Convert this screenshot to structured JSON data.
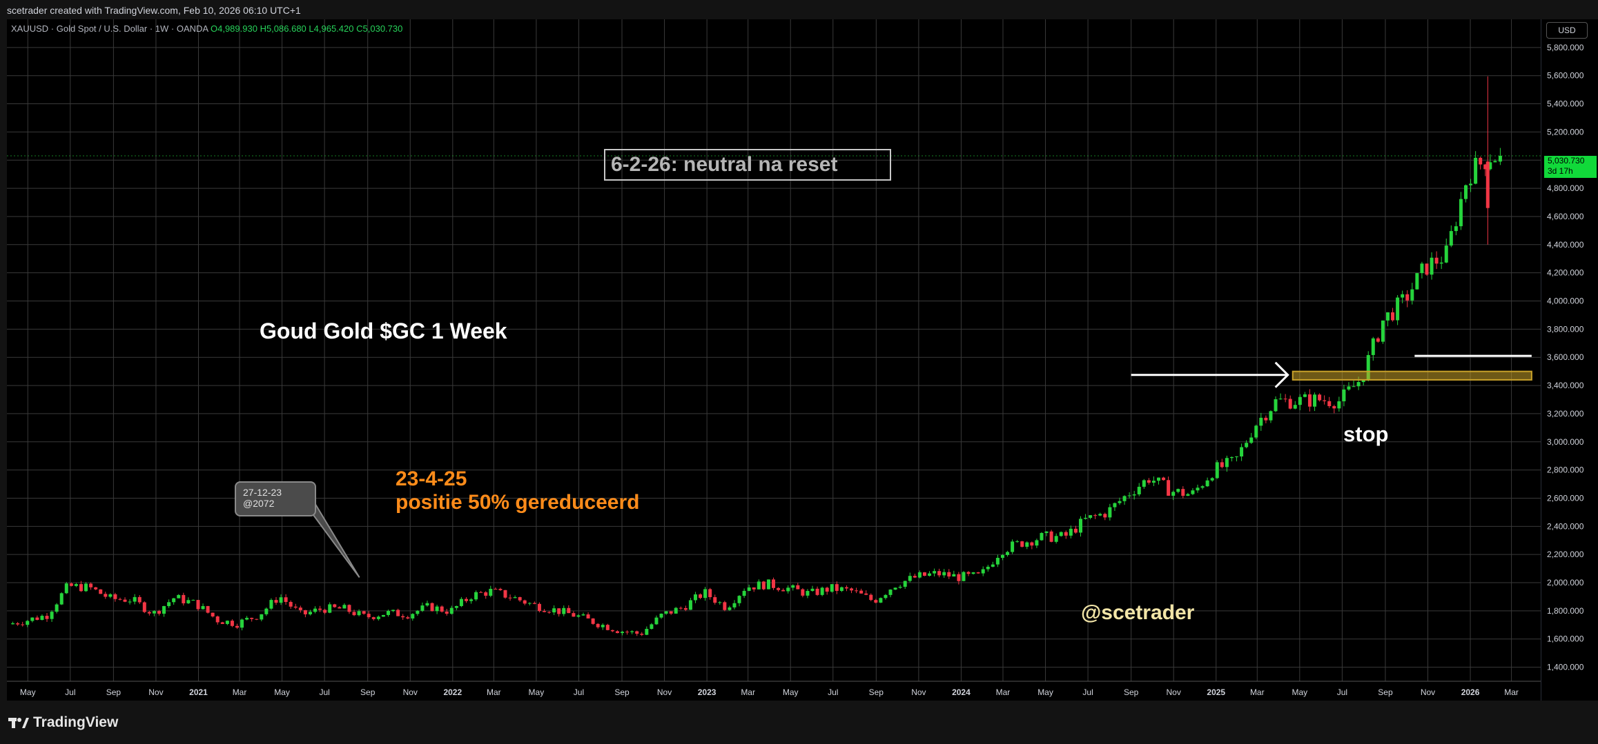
{
  "header": {
    "credit": "scetrader created with TradingView.com, Feb 10, 2026 06:10 UTC+1",
    "symbol_line": "XAUUSD · Gold Spot / U.S. Dollar · 1W · OANDA",
    "ohlc": {
      "o": "O4,989.930",
      "h": "H5,086.680",
      "l": "L4,965.420",
      "c": "C5,030.730"
    }
  },
  "price_axis": {
    "currency": "USD",
    "last_price": "5,030.730",
    "countdown": "3d 17h"
  },
  "annotations": {
    "box_title": "6-2-26: neutral na reset",
    "chart_title": "Goud Gold $GC 1 Week",
    "note_date": "23-4-25",
    "note_text": "positie 50% gereduceerd",
    "stop_label": "stop",
    "handle": "@scetrader",
    "callout_date": "27-12-23",
    "callout_price": "@2072"
  },
  "footer": {
    "brand": "TradingView"
  },
  "colors": {
    "up": "#26d43c",
    "down": "#f23645",
    "zone": "#c9a22a",
    "orange": "#ff8c1a",
    "accent": "#11d93a"
  },
  "chart_data": {
    "type": "candlestick",
    "timeframe": "1W",
    "title": "Goud Gold $GC 1 Week",
    "x_range": [
      "2020-04-01",
      "2026-04-15"
    ],
    "ylim": [
      1300,
      6000
    ],
    "y_ticks": [
      "1,400.000",
      "1,600.000",
      "1,800.000",
      "2,000.000",
      "2,200.000",
      "2,400.000",
      "2,600.000",
      "2,800.000",
      "3,000.000",
      "3,200.000",
      "3,400.000",
      "3,600.000",
      "3,800.000",
      "4,000.000",
      "4,200.000",
      "4,400.000",
      "4,600.000",
      "4,800.000",
      "5,000.000",
      "5,200.000",
      "5,400.000",
      "5,600.000",
      "5,800.000"
    ],
    "x_ticks": [
      {
        "label": "May",
        "date": "2020-05-01"
      },
      {
        "label": "Jul",
        "date": "2020-07-01"
      },
      {
        "label": "Sep",
        "date": "2020-09-01"
      },
      {
        "label": "Nov",
        "date": "2020-11-01"
      },
      {
        "label": "2021",
        "date": "2021-01-01"
      },
      {
        "label": "Mar",
        "date": "2021-03-01"
      },
      {
        "label": "May",
        "date": "2021-05-01"
      },
      {
        "label": "Jul",
        "date": "2021-07-01"
      },
      {
        "label": "Sep",
        "date": "2021-09-01"
      },
      {
        "label": "Nov",
        "date": "2021-11-01"
      },
      {
        "label": "2022",
        "date": "2022-01-01"
      },
      {
        "label": "Mar",
        "date": "2022-03-01"
      },
      {
        "label": "May",
        "date": "2022-05-01"
      },
      {
        "label": "Jul",
        "date": "2022-07-01"
      },
      {
        "label": "Sep",
        "date": "2022-09-01"
      },
      {
        "label": "Nov",
        "date": "2022-11-01"
      },
      {
        "label": "2023",
        "date": "2023-01-01"
      },
      {
        "label": "Mar",
        "date": "2023-03-01"
      },
      {
        "label": "May",
        "date": "2023-05-01"
      },
      {
        "label": "Jul",
        "date": "2023-07-01"
      },
      {
        "label": "Sep",
        "date": "2023-09-01"
      },
      {
        "label": "Nov",
        "date": "2023-11-01"
      },
      {
        "label": "2024",
        "date": "2024-01-01"
      },
      {
        "label": "Mar",
        "date": "2024-03-01"
      },
      {
        "label": "May",
        "date": "2024-05-01"
      },
      {
        "label": "Jul",
        "date": "2024-07-01"
      },
      {
        "label": "Sep",
        "date": "2024-09-01"
      },
      {
        "label": "Nov",
        "date": "2024-11-01"
      },
      {
        "label": "2025",
        "date": "2025-01-01"
      },
      {
        "label": "Mar",
        "date": "2025-03-01"
      },
      {
        "label": "May",
        "date": "2025-05-01"
      },
      {
        "label": "Jul",
        "date": "2025-07-01"
      },
      {
        "label": "Sep",
        "date": "2025-09-01"
      },
      {
        "label": "Nov",
        "date": "2025-11-01"
      },
      {
        "label": "2026",
        "date": "2026-01-01"
      },
      {
        "label": "Mar",
        "date": "2026-03-01"
      }
    ],
    "monthly_close": [
      [
        "2020-04",
        1700
      ],
      [
        "2020-05",
        1730
      ],
      [
        "2020-06",
        1770
      ],
      [
        "2020-07",
        1975
      ],
      [
        "2020-08",
        1965
      ],
      [
        "2020-09",
        1885
      ],
      [
        "2020-10",
        1880
      ],
      [
        "2020-11",
        1780
      ],
      [
        "2020-12",
        1895
      ],
      [
        "2021-01",
        1850
      ],
      [
        "2021-02",
        1735
      ],
      [
        "2021-03",
        1710
      ],
      [
        "2021-04",
        1770
      ],
      [
        "2021-05",
        1905
      ],
      [
        "2021-06",
        1770
      ],
      [
        "2021-07",
        1815
      ],
      [
        "2021-08",
        1815
      ],
      [
        "2021-09",
        1755
      ],
      [
        "2021-10",
        1785
      ],
      [
        "2021-11",
        1775
      ],
      [
        "2021-12",
        1830
      ],
      [
        "2022-01",
        1795
      ],
      [
        "2022-02",
        1910
      ],
      [
        "2022-03",
        1940
      ],
      [
        "2022-04",
        1895
      ],
      [
        "2022-05",
        1840
      ],
      [
        "2022-06",
        1805
      ],
      [
        "2022-07",
        1765
      ],
      [
        "2022-08",
        1710
      ],
      [
        "2022-09",
        1660
      ],
      [
        "2022-10",
        1635
      ],
      [
        "2022-11",
        1770
      ],
      [
        "2022-12",
        1825
      ],
      [
        "2023-01",
        1930
      ],
      [
        "2023-02",
        1825
      ],
      [
        "2023-03",
        1970
      ],
      [
        "2023-04",
        1990
      ],
      [
        "2023-05",
        1960
      ],
      [
        "2023-06",
        1920
      ],
      [
        "2023-07",
        1960
      ],
      [
        "2023-08",
        1940
      ],
      [
        "2023-09",
        1870
      ],
      [
        "2023-10",
        1985
      ],
      [
        "2023-11",
        2040
      ],
      [
        "2023-12",
        2065
      ],
      [
        "2024-01",
        2040
      ],
      [
        "2024-02",
        2045
      ],
      [
        "2024-03",
        2230
      ],
      [
        "2024-04",
        2285
      ],
      [
        "2024-05",
        2325
      ],
      [
        "2024-06",
        2325
      ],
      [
        "2024-07",
        2445
      ],
      [
        "2024-08",
        2500
      ],
      [
        "2024-09",
        2635
      ],
      [
        "2024-10",
        2745
      ],
      [
        "2024-11",
        2650
      ],
      [
        "2024-12",
        2625
      ],
      [
        "2025-01",
        2800
      ],
      [
        "2025-02",
        2860
      ],
      [
        "2025-03",
        3120
      ],
      [
        "2025-04",
        3290
      ],
      [
        "2025-05",
        3290
      ],
      [
        "2025-06",
        3300
      ],
      [
        "2025-07",
        3290
      ],
      [
        "2025-08",
        3450
      ],
      [
        "2025-09",
        3860
      ],
      [
        "2025-10",
        4000
      ],
      [
        "2025-11",
        4240
      ],
      [
        "2025-12",
        4330
      ],
      [
        "2026-01",
        4900
      ],
      [
        "2026-02",
        5030
      ]
    ],
    "last_candle": {
      "date": "2026-02-09",
      "open": 4989.93,
      "high": 5086.68,
      "low": 4965.42,
      "close": 5030.73
    },
    "all_time_high_wick": 5595,
    "support_zone": {
      "from": "2025-04-21",
      "to": "2026-03-30",
      "low": 3440,
      "high": 3500
    },
    "stop_level": {
      "from": "2025-10-13",
      "to": "2026-03-30",
      "price": 3610
    },
    "arrow": {
      "from": "2024-09-01",
      "to": "2025-04-14",
      "price": 3475
    },
    "callout_target": {
      "date": "2021-08-30",
      "price": 1900
    }
  }
}
